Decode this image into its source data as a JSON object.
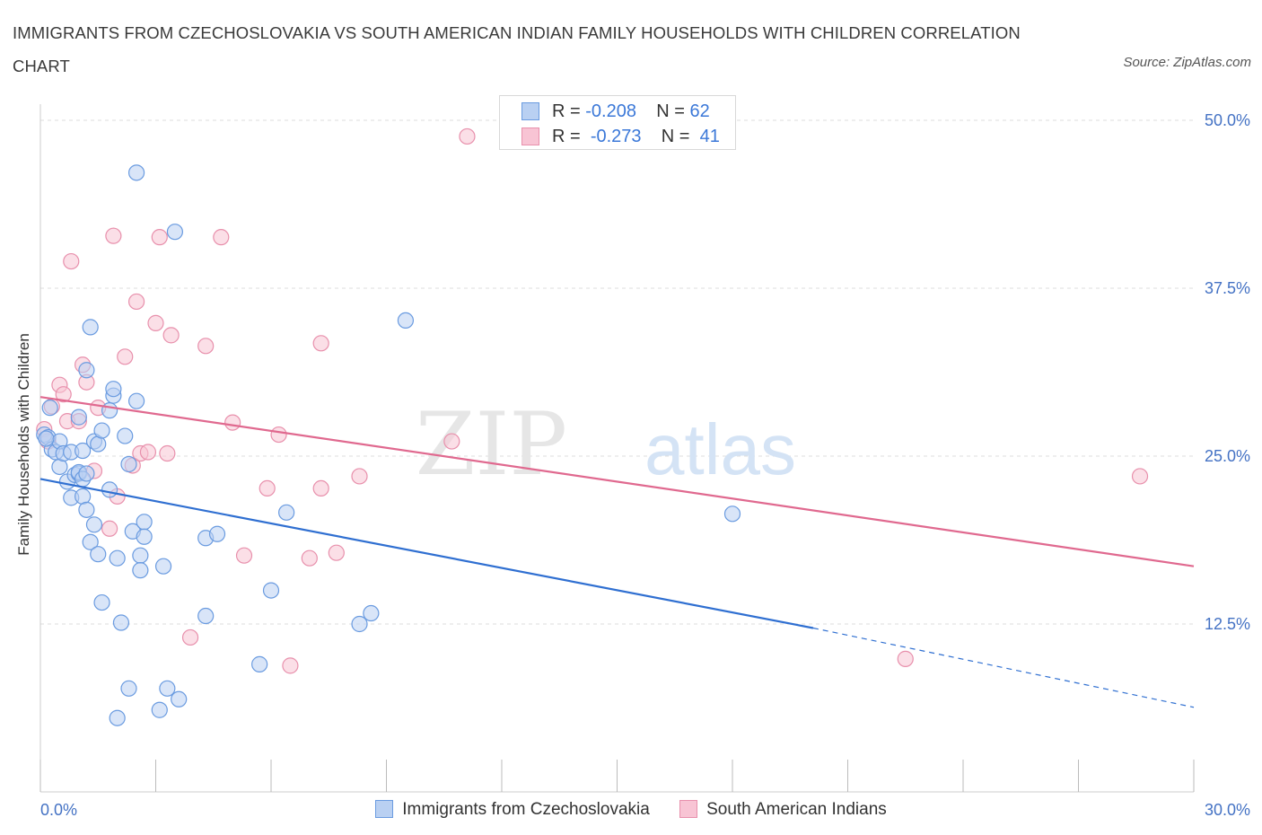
{
  "title": "IMMIGRANTS FROM CZECHOSLOVAKIA VS SOUTH AMERICAN INDIAN FAMILY HOUSEHOLDS WITH CHILDREN CORRELATION CHART",
  "source": "Source: ZipAtlas.com",
  "watermark": {
    "zip": "ZIP",
    "atlas": "atlas"
  },
  "legend_stats": [
    {
      "r_label": "R =",
      "r_value": "-0.208",
      "n_label": "N =",
      "n_value": "62"
    },
    {
      "r_label": "R =",
      "r_value": "-0.273",
      "n_label": "N =",
      "n_value": "41"
    }
  ],
  "colors": {
    "blue_fill": "#b9d0f2",
    "blue_stroke": "#6a9be0",
    "blue_line": "#2f6fd1",
    "pink_fill": "#f8c4d4",
    "pink_stroke": "#e890ac",
    "pink_line": "#e0698f",
    "tick_text": "#4472c4",
    "grid": "#dddddd"
  },
  "chart_data": {
    "type": "scatter",
    "title": "IMMIGRANTS FROM CZECHOSLOVAKIA VS SOUTH AMERICAN INDIAN FAMILY HOUSEHOLDS WITH CHILDREN CORRELATION CHART",
    "xlabel": "",
    "ylabel": "Family Households with Children",
    "xlim": [
      0,
      30
    ],
    "ylim": [
      0,
      50
    ],
    "x_tick_labels": [
      "0.0%",
      "30.0%"
    ],
    "y_ticks": [
      12.5,
      25.0,
      37.5,
      50.0
    ],
    "y_tick_labels": [
      "12.5%",
      "25.0%",
      "37.5%",
      "50.0%"
    ],
    "grid": true,
    "legend_position": "bottom",
    "series": [
      {
        "name": "Immigrants from Czechoslovakia",
        "color": "blue",
        "R": -0.208,
        "N": 62,
        "trend": {
          "x0": 0,
          "y0": 23.3,
          "x1": 20.1,
          "y1": 12.2,
          "dash_to_x": 30,
          "dash_to_y": 6.3
        },
        "points": [
          [
            0.1,
            26.6
          ],
          [
            0.2,
            26.4
          ],
          [
            0.3,
            25.5
          ],
          [
            0.25,
            28.6
          ],
          [
            0.4,
            25.3
          ],
          [
            0.5,
            26.1
          ],
          [
            0.5,
            24.2
          ],
          [
            0.6,
            25.2
          ],
          [
            0.7,
            23.1
          ],
          [
            0.8,
            25.3
          ],
          [
            0.8,
            21.9
          ],
          [
            0.9,
            23.6
          ],
          [
            1.0,
            23.7
          ],
          [
            1.0,
            27.9
          ],
          [
            1.0,
            23.8
          ],
          [
            1.1,
            25.4
          ],
          [
            1.1,
            23.3
          ],
          [
            1.1,
            22.0
          ],
          [
            1.2,
            31.4
          ],
          [
            1.2,
            21.0
          ],
          [
            1.2,
            23.7
          ],
          [
            1.3,
            18.6
          ],
          [
            1.3,
            34.6
          ],
          [
            1.4,
            19.9
          ],
          [
            1.4,
            26.1
          ],
          [
            1.5,
            25.9
          ],
          [
            1.5,
            17.7
          ],
          [
            1.6,
            26.9
          ],
          [
            1.6,
            14.1
          ],
          [
            1.8,
            22.5
          ],
          [
            1.8,
            28.4
          ],
          [
            1.9,
            29.5
          ],
          [
            1.9,
            30.0
          ],
          [
            2.0,
            17.4
          ],
          [
            2.1,
            12.6
          ],
          [
            2.2,
            26.5
          ],
          [
            2.3,
            24.4
          ],
          [
            2.3,
            7.7
          ],
          [
            2.4,
            19.4
          ],
          [
            2.5,
            29.1
          ],
          [
            2.5,
            46.1
          ],
          [
            2.6,
            17.6
          ],
          [
            2.6,
            16.5
          ],
          [
            2.7,
            20.1
          ],
          [
            2.7,
            19.0
          ],
          [
            2.0,
            5.5
          ],
          [
            3.2,
            16.8
          ],
          [
            3.1,
            6.1
          ],
          [
            3.3,
            7.7
          ],
          [
            3.5,
            41.7
          ],
          [
            3.6,
            6.9
          ],
          [
            4.3,
            18.9
          ],
          [
            4.3,
            13.1
          ],
          [
            4.6,
            19.2
          ],
          [
            5.7,
            9.5
          ],
          [
            6.0,
            15.0
          ],
          [
            6.4,
            20.8
          ],
          [
            8.3,
            12.5
          ],
          [
            8.6,
            13.3
          ],
          [
            9.5,
            35.1
          ],
          [
            18.0,
            20.7
          ],
          [
            0.15,
            26.3
          ]
        ]
      },
      {
        "name": "South American Indians",
        "color": "pink",
        "R": -0.273,
        "N": 41,
        "trend": {
          "x0": 0,
          "y0": 29.4,
          "x1": 30,
          "y1": 16.8
        },
        "points": [
          [
            0.1,
            27.0
          ],
          [
            0.2,
            26.1
          ],
          [
            0.3,
            28.7
          ],
          [
            0.5,
            30.3
          ],
          [
            0.6,
            29.6
          ],
          [
            0.7,
            27.6
          ],
          [
            0.8,
            39.5
          ],
          [
            1.1,
            31.8
          ],
          [
            1.2,
            30.5
          ],
          [
            1.4,
            23.9
          ],
          [
            1.5,
            28.6
          ],
          [
            1.8,
            19.6
          ],
          [
            1.9,
            41.4
          ],
          [
            2.0,
            22.0
          ],
          [
            2.2,
            32.4
          ],
          [
            2.4,
            24.3
          ],
          [
            2.5,
            36.5
          ],
          [
            2.6,
            25.2
          ],
          [
            2.8,
            25.3
          ],
          [
            3.0,
            34.9
          ],
          [
            3.1,
            41.3
          ],
          [
            3.3,
            25.2
          ],
          [
            3.4,
            34.0
          ],
          [
            3.9,
            11.5
          ],
          [
            4.3,
            33.2
          ],
          [
            4.7,
            41.3
          ],
          [
            5.0,
            27.5
          ],
          [
            5.3,
            17.6
          ],
          [
            5.9,
            22.6
          ],
          [
            6.2,
            26.6
          ],
          [
            6.5,
            9.4
          ],
          [
            7.0,
            17.4
          ],
          [
            7.3,
            22.6
          ],
          [
            7.3,
            33.4
          ],
          [
            7.7,
            17.8
          ],
          [
            8.3,
            23.5
          ],
          [
            10.7,
            26.1
          ],
          [
            11.1,
            48.8
          ],
          [
            22.5,
            9.9
          ],
          [
            28.6,
            23.5
          ],
          [
            1.0,
            27.6
          ]
        ]
      }
    ]
  }
}
